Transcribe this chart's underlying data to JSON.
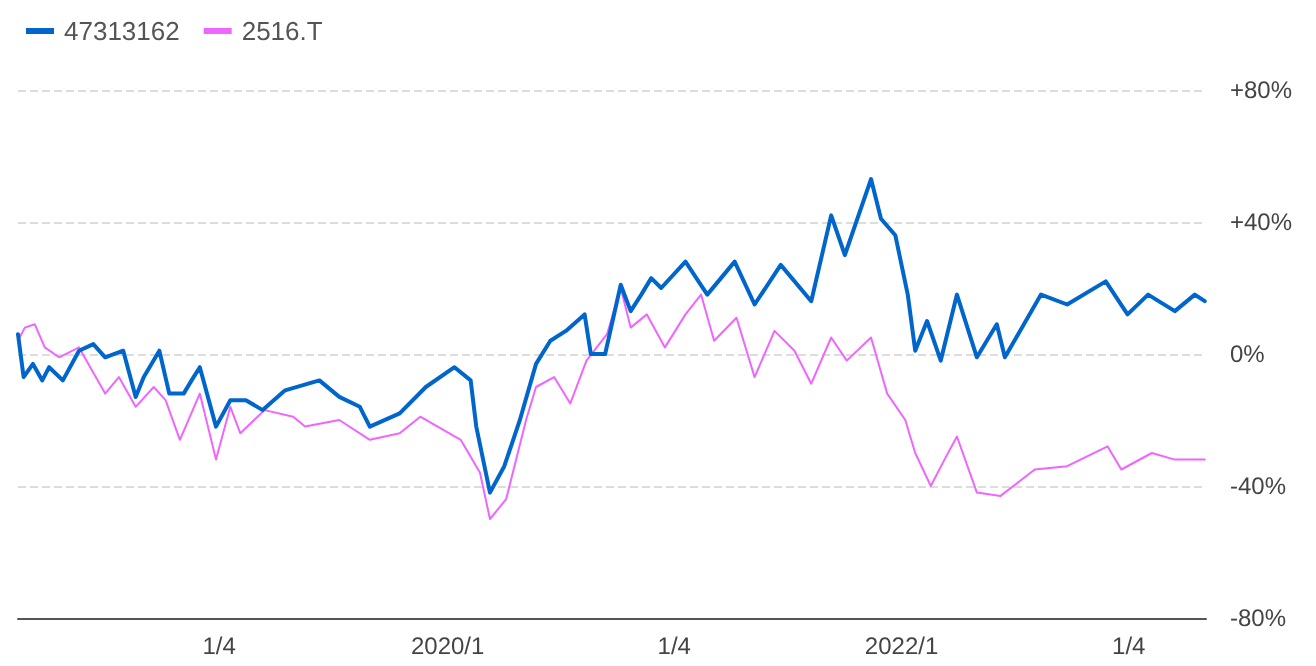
{
  "chart_data": {
    "type": "line",
    "legend": "top left",
    "grid": "y",
    "marker": "none",
    "line_style": "solid",
    "xlim": [
      "2018-02-15",
      "2023-05-08"
    ],
    "xticks": [
      {
        "value": "2019-01-04",
        "label": "1/4"
      },
      {
        "value": "2020-01-06",
        "label": "2020/1"
      },
      {
        "value": "2021-01-04",
        "label": "1/4"
      },
      {
        "value": "2022-01-04",
        "label": "2022/1"
      },
      {
        "value": "2023-01-04",
        "label": "1/4"
      }
    ],
    "ylim": [
      -80,
      80
    ],
    "yticks": [
      {
        "value": -80,
        "label": "-80%"
      },
      {
        "value": -40,
        "label": "-40%"
      },
      {
        "value": 0,
        "label": "0%"
      },
      {
        "value": 40,
        "label": "+40%"
      },
      {
        "value": 80,
        "label": "+80%"
      }
    ],
    "series": [
      {
        "name": "47313162",
        "color": "#0066cc",
        "x": [
          "2018-02-15",
          "2018-02-24",
          "2018-03-11",
          "2018-03-26",
          "2018-04-06",
          "2018-04-28",
          "2018-05-24",
          "2018-06-16",
          "2018-07-05",
          "2018-08-03",
          "2018-08-23",
          "2018-09-05",
          "2018-09-30",
          "2018-10-16",
          "2018-11-08",
          "2018-11-24",
          "2018-12-04",
          "2018-12-30",
          "2019-01-22",
          "2019-02-16",
          "2019-03-15",
          "2019-04-20",
          "2019-06-14",
          "2019-07-16",
          "2019-08-18",
          "2019-09-03",
          "2019-10-21",
          "2019-12-02",
          "2020-01-17",
          "2020-02-12",
          "2020-02-21",
          "2020-03-14",
          "2020-04-06",
          "2020-05-01",
          "2020-05-27",
          "2020-06-19",
          "2020-07-14",
          "2020-08-13",
          "2020-08-23",
          "2020-09-15",
          "2020-10-10",
          "2020-10-26",
          "2020-11-12",
          "2020-11-28",
          "2020-12-14",
          "2021-01-22",
          "2021-02-26",
          "2021-04-11",
          "2021-05-13",
          "2021-06-24",
          "2021-08-12",
          "2021-09-13",
          "2021-10-05",
          "2021-11-16",
          "2021-12-02",
          "2021-12-25",
          "2022-01-14",
          "2022-01-26",
          "2022-02-14",
          "2022-03-08",
          "2022-04-03",
          "2022-05-05",
          "2022-06-06",
          "2022-06-19",
          "2022-08-16",
          "2022-09-27",
          "2022-11-28",
          "2023-01-02",
          "2023-02-04",
          "2023-03-19",
          "2023-04-20",
          "2023-05-06"
        ],
        "values": [
          6,
          -7,
          -3,
          -8,
          -4,
          -8,
          1,
          3,
          -1,
          1,
          -13,
          -7,
          1,
          -12,
          -12,
          -7,
          -4,
          -22,
          -14,
          -14,
          -17,
          -11,
          -8,
          -13,
          -16,
          -22,
          -18,
          -10,
          -4,
          -8,
          -22,
          -42,
          -34,
          -20,
          -3,
          4,
          7,
          12,
          0,
          0,
          21,
          13,
          18,
          23,
          20,
          28,
          18,
          28,
          15,
          27,
          16,
          42,
          30,
          53,
          41,
          36,
          18,
          1,
          10,
          -2,
          18,
          -1,
          9,
          -1,
          18,
          15,
          22,
          12,
          18,
          13,
          18,
          16
        ]
      },
      {
        "name": "2516.T",
        "color": "#ee66ff",
        "x": [
          "2018-02-15",
          "2018-02-26",
          "2018-03-14",
          "2018-03-30",
          "2018-04-22",
          "2018-05-24",
          "2018-07-05",
          "2018-07-27",
          "2018-08-23",
          "2018-09-21",
          "2018-10-10",
          "2018-11-02",
          "2018-12-04",
          "2018-12-30",
          "2019-01-22",
          "2019-02-07",
          "2019-03-18",
          "2019-05-03",
          "2019-05-22",
          "2019-07-16",
          "2019-09-03",
          "2019-10-21",
          "2019-11-23",
          "2020-01-27",
          "2020-02-27",
          "2020-03-14",
          "2020-04-09",
          "2020-05-11",
          "2020-05-27",
          "2020-06-25",
          "2020-07-21",
          "2020-08-16",
          "2020-09-18",
          "2020-10-10",
          "2020-10-26",
          "2020-11-21",
          "2020-12-20",
          "2021-01-22",
          "2021-02-16",
          "2021-03-09",
          "2021-04-14",
          "2021-05-13",
          "2021-06-14",
          "2021-07-16",
          "2021-08-12",
          "2021-09-13",
          "2021-10-08",
          "2021-11-16",
          "2021-12-12",
          "2022-01-10",
          "2022-01-26",
          "2022-02-20",
          "2022-03-14",
          "2022-04-03",
          "2022-05-05",
          "2022-06-12",
          "2022-08-06",
          "2022-09-27",
          "2022-12-01",
          "2022-12-23",
          "2023-02-10",
          "2023-03-19",
          "2023-05-06"
        ],
        "values": [
          4,
          8,
          9,
          2,
          -1,
          2,
          -12,
          -7,
          -16,
          -10,
          -14,
          -26,
          -12,
          -32,
          -16,
          -24,
          -17,
          -19,
          -22,
          -20,
          -26,
          -24,
          -19,
          -26,
          -36,
          -50,
          -44,
          -20,
          -10,
          -7,
          -15,
          -2,
          6,
          20,
          8,
          12,
          2,
          12,
          18,
          4,
          11,
          -7,
          7,
          1,
          -9,
          5,
          -2,
          5,
          -12,
          -20,
          -30,
          -40,
          -32,
          -25,
          -42,
          -43,
          -35,
          -34,
          -28,
          -35,
          -30,
          -32,
          -32
        ]
      }
    ]
  }
}
